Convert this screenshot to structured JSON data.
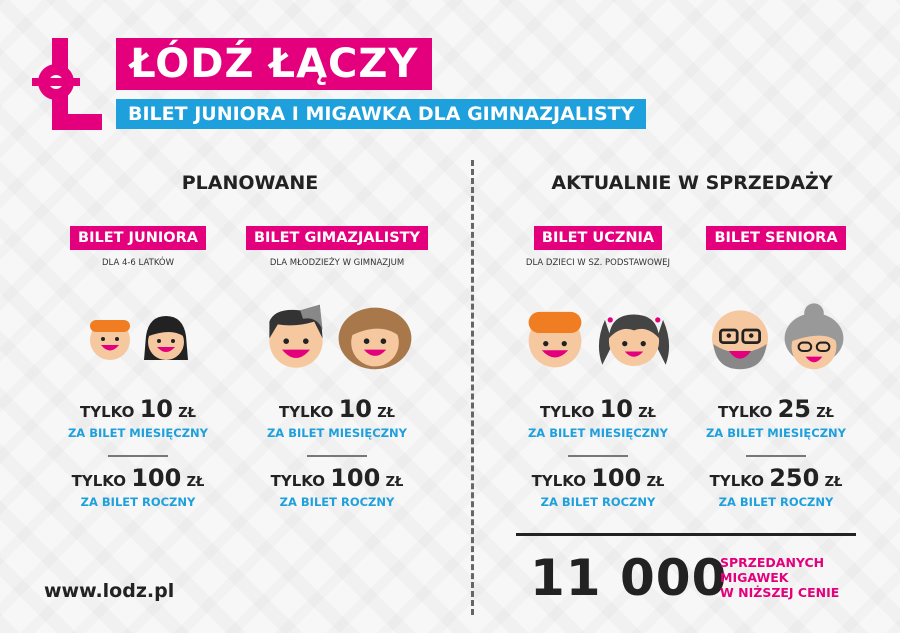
{
  "header": {
    "title": "ŁÓDŹ ŁĄCZY",
    "subtitle": "BILET JUNIORA I MIGAWKA DLA GIMNAZJALISTY",
    "logo_icon": "lodz-L-logo"
  },
  "colors": {
    "pink": "#e4007c",
    "blue": "#1ea0dc"
  },
  "sections": [
    {
      "title": "PLANOWANE"
    },
    {
      "title": "AKTUALNIE W SPRZEDAŻY"
    }
  ],
  "tickets": [
    {
      "label": "BILET JUNIORA",
      "desc": "DLA 4-6 LATKÓW",
      "monthly": {
        "prefix": "TYLKO",
        "amount": "10",
        "currency": "ZŁ",
        "note": "ZA BILET MIESIĘCZNY"
      },
      "yearly": {
        "prefix": "TYLKO",
        "amount": "100",
        "currency": "ZŁ",
        "note": "ZA BILET ROCZNY"
      }
    },
    {
      "label": "BILET GIMAZJALISTY",
      "desc": "DLA MŁODZIEŻY W GIMNAZJUM",
      "monthly": {
        "prefix": "TYLKO",
        "amount": "10",
        "currency": "ZŁ",
        "note": "ZA BILET MIESIĘCZNY"
      },
      "yearly": {
        "prefix": "TYLKO",
        "amount": "100",
        "currency": "ZŁ",
        "note": "ZA BILET ROCZNY"
      }
    },
    {
      "label": "BILET UCZNIA",
      "desc": "DLA DZIECI W SZ. PODSTAWOWEJ",
      "monthly": {
        "prefix": "TYLKO",
        "amount": "10",
        "currency": "ZŁ",
        "note": "ZA BILET MIESIĘCZNY"
      },
      "yearly": {
        "prefix": "TYLKO",
        "amount": "100",
        "currency": "ZŁ",
        "note": "ZA BILET ROCZNY"
      }
    },
    {
      "label": "BILET SENIORA",
      "desc": "",
      "monthly": {
        "prefix": "TYLKO",
        "amount": "25",
        "currency": "ZŁ",
        "note": "ZA BILET MIESIĘCZNY"
      },
      "yearly": {
        "prefix": "TYLKO",
        "amount": "250",
        "currency": "ZŁ",
        "note": "ZA BILET ROCZNY"
      }
    }
  ],
  "stats": {
    "count": "11 000",
    "text_lines": [
      "SPRZEDANYCH",
      "MIGAWEK",
      "W NIŻSZEJ CENIE"
    ]
  },
  "footer": {
    "url": "www.lodz.pl"
  }
}
